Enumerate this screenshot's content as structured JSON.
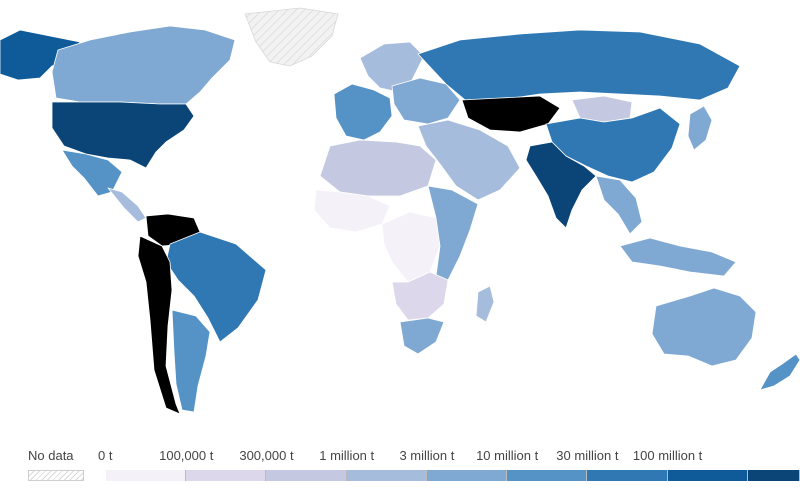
{
  "legend": {
    "no_data_label": "No data",
    "ticks": [
      "0 t",
      "100,000 t",
      "300,000 t",
      "1 million t",
      "3 million t",
      "10 million t",
      "30 million t",
      "100 million t"
    ],
    "colors": [
      "#f4f1f9",
      "#dcd7ea",
      "#c4c9e1",
      "#a6bcdc",
      "#7fa9d3",
      "#5593c7",
      "#2f78b4",
      "#0f5a99",
      "#0b4577"
    ]
  },
  "map": {
    "colors": {
      "background": "#ffffff",
      "border": "#ffffff",
      "no_data_hatch": "#d9d9d9"
    },
    "regions": [
      {
        "name": "Alaska",
        "color": "#0f5a99"
      },
      {
        "name": "Canada",
        "color": "#7fa9d3"
      },
      {
        "name": "Greenland",
        "color": "no-data"
      },
      {
        "name": "United States",
        "color": "#0b4577"
      },
      {
        "name": "Mexico",
        "color": "#5593c7"
      },
      {
        "name": "Central America",
        "color": "#a6bcdc"
      },
      {
        "name": "Colombia and Venezuela",
        "color": "#7fa9d3"
      },
      {
        "name": "Brazil",
        "color": "#2f78b4"
      },
      {
        "name": "Argentina",
        "color": "#5593c7"
      },
      {
        "name": "Chile and Andes",
        "color": "#a6bcdc"
      },
      {
        "name": "Western Europe",
        "color": "#5593c7"
      },
      {
        "name": "Eastern Europe",
        "color": "#7fa9d3"
      },
      {
        "name": "Scandinavia",
        "color": "#a6bcdc"
      },
      {
        "name": "Russia",
        "color": "#2f78b4"
      },
      {
        "name": "Kazakhstan and Central Asia",
        "color": "#a6bcdc"
      },
      {
        "name": "Mongolia",
        "color": "#c4c9e1"
      },
      {
        "name": "China",
        "color": "#2f78b4"
      },
      {
        "name": "India",
        "color": "#0b4577"
      },
      {
        "name": "Middle East",
        "color": "#a6bcdc"
      },
      {
        "name": "North Africa",
        "color": "#c4c9e1"
      },
      {
        "name": "West Africa",
        "color": "#f4f1f9"
      },
      {
        "name": "Central Africa",
        "color": "#f4f1f9"
      },
      {
        "name": "East Africa",
        "color": "#7fa9d3"
      },
      {
        "name": "Southern Africa",
        "color": "#dcd7ea"
      },
      {
        "name": "South Africa",
        "color": "#7fa9d3"
      },
      {
        "name": "Madagascar",
        "color": "#a6bcdc"
      },
      {
        "name": "Southeast Asia",
        "color": "#7fa9d3"
      },
      {
        "name": "Indonesia",
        "color": "#7fa9d3"
      },
      {
        "name": "Japan",
        "color": "#7fa9d3"
      },
      {
        "name": "Australia",
        "color": "#7fa9d3"
      },
      {
        "name": "New Zealand",
        "color": "#5593c7"
      }
    ]
  }
}
